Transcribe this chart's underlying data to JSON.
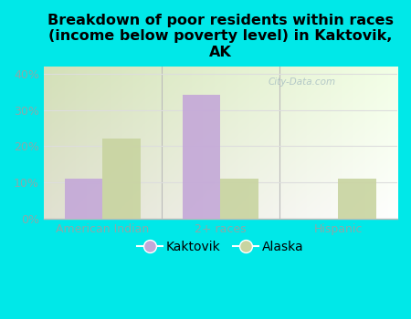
{
  "title": "Breakdown of poor residents within races\n(income below poverty level) in Kaktovik,\nAK",
  "categories": [
    "American Indian",
    "2+ races",
    "Hispanic"
  ],
  "kaktovik_values": [
    11.1,
    34.3,
    0.0
  ],
  "alaska_values": [
    22.2,
    11.1,
    11.1
  ],
  "kaktovik_color": "#c4a8d8",
  "alaska_color": "#c8d4a0",
  "background_outer": "#00e8e8",
  "ylim": [
    0,
    42
  ],
  "yticks": [
    0,
    10,
    20,
    30,
    40
  ],
  "yticklabels": [
    "0%",
    "10%",
    "20%",
    "30%",
    "40%"
  ],
  "bar_width": 0.32,
  "legend_kaktovik": "Kaktovik",
  "legend_alaska": "Alaska",
  "title_fontsize": 11.5,
  "tick_fontsize": 9,
  "legend_fontsize": 10,
  "tick_color": "#88aaaa",
  "divider_color": "#bbbbbb",
  "grid_color": "#dddddd"
}
